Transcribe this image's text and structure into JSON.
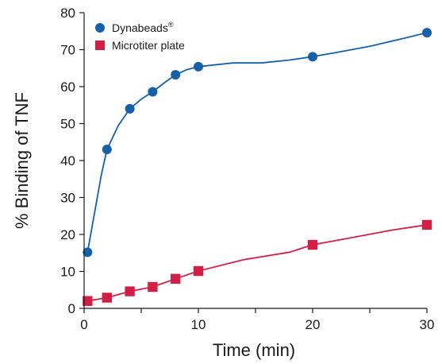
{
  "chart_data": {
    "type": "line",
    "xlabel": "Time (min)",
    "ylabel": "% Binding of TNF",
    "xlim": [
      0,
      30
    ],
    "ylim": [
      0,
      80
    ],
    "xticks": [
      0,
      10,
      20,
      30
    ],
    "yticks": [
      0,
      10,
      20,
      30,
      40,
      50,
      60,
      70,
      80
    ],
    "grid": false,
    "legend_position": "top-left",
    "series": [
      {
        "name": "Dynabeads",
        "name_superscript": "®",
        "color": "#1560a8",
        "marker": "circle",
        "points": [
          {
            "x": 0.3,
            "y": 15.2
          },
          {
            "x": 2,
            "y": 43
          },
          {
            "x": 4,
            "y": 54
          },
          {
            "x": 6,
            "y": 58.6
          },
          {
            "x": 8,
            "y": 63.2
          },
          {
            "x": 10,
            "y": 65.4
          },
          {
            "x": 20,
            "y": 68.1
          },
          {
            "x": 30,
            "y": 74.6
          }
        ],
        "curve": [
          {
            "x": 0.3,
            "y": 15.2
          },
          {
            "x": 1.5,
            "y": 36
          },
          {
            "x": 2,
            "y": 43
          },
          {
            "x": 3,
            "y": 49.5
          },
          {
            "x": 4,
            "y": 54
          },
          {
            "x": 5,
            "y": 56.6
          },
          {
            "x": 6,
            "y": 58.6
          },
          {
            "x": 7,
            "y": 61
          },
          {
            "x": 8,
            "y": 63.2
          },
          {
            "x": 9,
            "y": 64.6
          },
          {
            "x": 10,
            "y": 65.4
          },
          {
            "x": 13,
            "y": 66.4
          },
          {
            "x": 15.5,
            "y": 66.4
          },
          {
            "x": 18,
            "y": 67.2
          },
          {
            "x": 20,
            "y": 68.1
          },
          {
            "x": 22,
            "y": 69.2
          },
          {
            "x": 25,
            "y": 70.9
          },
          {
            "x": 28,
            "y": 73.1
          },
          {
            "x": 30,
            "y": 74.6
          }
        ]
      },
      {
        "name": "Microtiter plate",
        "color": "#d11f45",
        "marker": "square",
        "points": [
          {
            "x": 0.3,
            "y": 2
          },
          {
            "x": 2,
            "y": 2.9
          },
          {
            "x": 4,
            "y": 4.6
          },
          {
            "x": 6,
            "y": 5.8
          },
          {
            "x": 8,
            "y": 8
          },
          {
            "x": 10,
            "y": 10.1
          },
          {
            "x": 20,
            "y": 17.2
          },
          {
            "x": 30,
            "y": 22.6
          }
        ],
        "curve": [
          {
            "x": 0.3,
            "y": 2
          },
          {
            "x": 2,
            "y": 2.9
          },
          {
            "x": 4,
            "y": 4.6
          },
          {
            "x": 6,
            "y": 5.8
          },
          {
            "x": 8,
            "y": 8
          },
          {
            "x": 10,
            "y": 10.1
          },
          {
            "x": 14,
            "y": 13.2
          },
          {
            "x": 18,
            "y": 15.2
          },
          {
            "x": 20,
            "y": 17.2
          },
          {
            "x": 23,
            "y": 18.9
          },
          {
            "x": 27,
            "y": 21.2
          },
          {
            "x": 30,
            "y": 22.6
          }
        ]
      }
    ]
  }
}
